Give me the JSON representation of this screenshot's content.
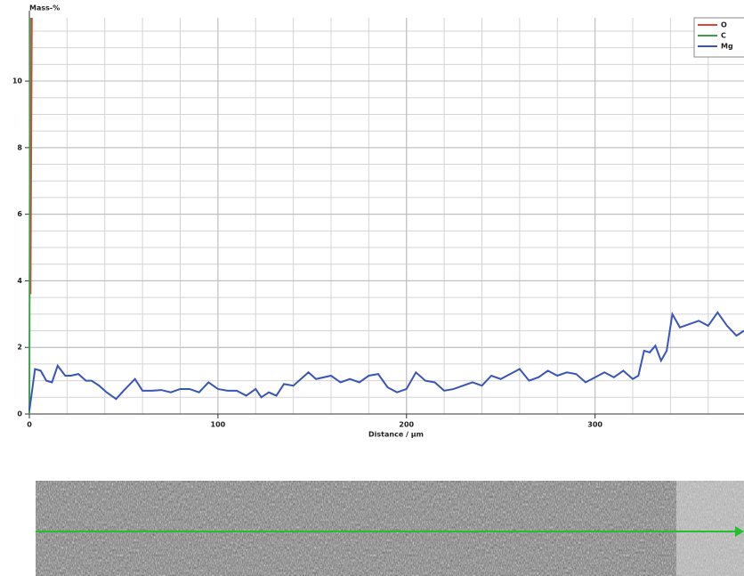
{
  "chart_data": {
    "type": "line",
    "ylabel": "Mass-%",
    "xlabel": "Distance / µm",
    "xlim": [
      0,
      379
    ],
    "ylim": [
      0,
      11.9
    ],
    "xticks": [
      0,
      100,
      200,
      300
    ],
    "yticks": [
      0,
      2,
      4,
      6,
      8,
      10
    ],
    "grid": true,
    "grid_x_step": 20,
    "grid_y_step": 0.5,
    "legend": "upper right",
    "series": [
      {
        "name": "O",
        "color": "#e0403a",
        "x": [
          0.6,
          1.3
        ],
        "values": [
          3.6,
          11.9
        ]
      },
      {
        "name": "C",
        "color": "#3aa04a",
        "x": [
          0,
          0.4
        ],
        "values": [
          0,
          11.9
        ]
      },
      {
        "name": "Mg",
        "color": "#3a55b8",
        "x": [
          0,
          3,
          6,
          9,
          12,
          15,
          19,
          22,
          26,
          30,
          33,
          37,
          41,
          46,
          50,
          56,
          60,
          65,
          70,
          75,
          80,
          85,
          90,
          95,
          100,
          105,
          110,
          115,
          120,
          123,
          127,
          131,
          135,
          140,
          143,
          148,
          152,
          156,
          160,
          165,
          170,
          175,
          180,
          185,
          190,
          195,
          200,
          205,
          210,
          215,
          220,
          225,
          230,
          235,
          240,
          245,
          250,
          255,
          260,
          265,
          270,
          275,
          280,
          285,
          290,
          295,
          300,
          305,
          310,
          315,
          320,
          323,
          326,
          329,
          332,
          335,
          338,
          341,
          345,
          350,
          355,
          360,
          365,
          370,
          375,
          379
        ],
        "values": [
          0.1,
          1.35,
          1.3,
          1.0,
          0.95,
          1.45,
          1.15,
          1.15,
          1.2,
          1.0,
          1.0,
          0.85,
          0.65,
          0.45,
          0.7,
          1.05,
          0.7,
          0.7,
          0.72,
          0.65,
          0.75,
          0.75,
          0.65,
          0.95,
          0.75,
          0.7,
          0.7,
          0.55,
          0.75,
          0.5,
          0.65,
          0.55,
          0.9,
          0.85,
          1.0,
          1.25,
          1.05,
          1.1,
          1.15,
          0.95,
          1.05,
          0.95,
          1.15,
          1.2,
          0.8,
          0.65,
          0.75,
          1.25,
          1.0,
          0.95,
          0.7,
          0.75,
          0.85,
          0.95,
          0.85,
          1.15,
          1.05,
          1.2,
          1.35,
          1.0,
          1.1,
          1.3,
          1.15,
          1.25,
          1.2,
          0.95,
          1.1,
          1.25,
          1.1,
          1.3,
          1.05,
          1.15,
          1.9,
          1.85,
          2.05,
          1.6,
          1.9,
          3.0,
          2.6,
          2.7,
          2.8,
          2.65,
          3.05,
          2.65,
          2.35,
          2.5
        ]
      }
    ]
  }
}
